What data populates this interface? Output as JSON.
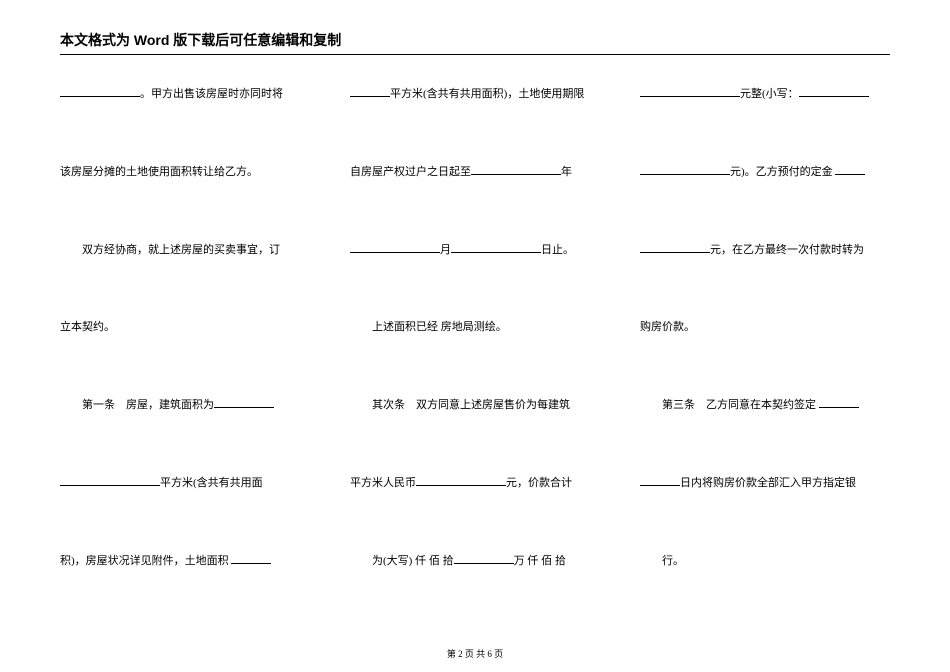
{
  "header": "本文格式为 Word 版下载后可任意编辑和复制",
  "col1": {
    "p1a": "。甲方出售该房屋时亦同时将",
    "p2": "该房屋分摊的土地使用面积转让给乙方。",
    "p3": "双方经协商，就上述房屋的买卖事宜，订",
    "p4": "立本契约。",
    "p5a": "第一条　房屋，建筑面积为",
    "p6": "平方米(含共有共用面",
    "p7a": "积)，房屋状况详见附件，土地面积"
  },
  "col2": {
    "p1": "平方米(含共有共用面积)，土地使用期限",
    "p2a": "自房屋产权过户之日起至",
    "p2b": "年",
    "p3a": "月",
    "p3b": "日止。",
    "p4": "上述面积已经 房地局测绘。",
    "p5": "其次条　双方同意上述房屋售价为每建筑",
    "p6a": "平方米人民币",
    "p6b": "元，价款合计",
    "p7a": "为(大写) 仟 佰 拾",
    "p7b": "万 仟 佰 拾"
  },
  "col3": {
    "p1a": "元整(小写：",
    "p2a": "元)。乙方预付的定金",
    "p3": "元，在乙方最终一次付款时转为",
    "p4": "购房价款。",
    "p5": "第三条　乙方同意在本契约签定",
    "p6": "日内将购房价款全部汇入甲方指定银",
    "p7": "行。"
  },
  "footer": "第 2 页 共 6 页"
}
